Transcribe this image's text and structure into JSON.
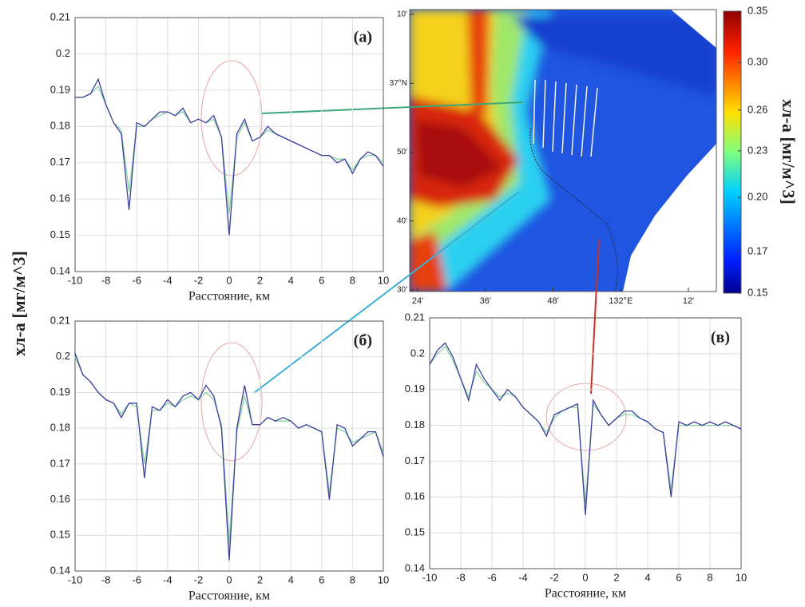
{
  "y_label": "хл-а [мг/м^3]",
  "chart_data": [
    {
      "type": "line",
      "panel_label": "(а)",
      "x_label": "Расстояние, км",
      "x": [
        -10,
        -9.5,
        -9,
        -8.5,
        -8,
        -7.5,
        -7,
        -6.5,
        -6,
        -5.5,
        -5,
        -4.5,
        -4,
        -3.5,
        -3,
        -2.5,
        -2,
        -1.5,
        -1,
        -0.5,
        0,
        0.5,
        1,
        1.5,
        2,
        2.5,
        3,
        3.5,
        4,
        4.5,
        5,
        5.5,
        6,
        6.5,
        7,
        7.5,
        8,
        8.5,
        9,
        9.5,
        10
      ],
      "series": [
        {
          "color": "#3c3f9e",
          "values": [
            0.188,
            0.188,
            0.189,
            0.193,
            0.186,
            0.181,
            0.178,
            0.157,
            0.181,
            0.18,
            0.182,
            0.184,
            0.184,
            0.183,
            0.185,
            0.181,
            0.182,
            0.181,
            0.183,
            0.177,
            0.15,
            0.178,
            0.182,
            0.176,
            0.177,
            0.18,
            0.178,
            0.177,
            0.176,
            0.175,
            0.174,
            0.173,
            0.172,
            0.172,
            0.17,
            0.171,
            0.167,
            0.171,
            0.173,
            0.172,
            0.169
          ]
        },
        {
          "color": "#86d3a4",
          "values": [
            0.188,
            0.188,
            0.189,
            0.191,
            0.186,
            0.181,
            0.179,
            0.162,
            0.18,
            0.18,
            0.182,
            0.183,
            0.184,
            0.183,
            0.184,
            0.181,
            0.182,
            0.181,
            0.182,
            0.177,
            0.156,
            0.177,
            0.181,
            0.176,
            0.177,
            0.179,
            0.178,
            0.177,
            0.176,
            0.175,
            0.174,
            0.173,
            0.172,
            0.172,
            0.171,
            0.171,
            0.168,
            0.171,
            0.172,
            0.172,
            0.17
          ]
        }
      ],
      "xlim": [
        -10,
        10
      ],
      "ylim": [
        0.14,
        0.21
      ],
      "xticks": [
        -10,
        -8,
        -6,
        -4,
        -2,
        0,
        2,
        4,
        6,
        8,
        10
      ],
      "yticks": [
        0.14,
        0.15,
        0.16,
        0.17,
        0.18,
        0.19,
        0.2,
        0.21
      ],
      "grid": true
    },
    {
      "type": "line",
      "panel_label": "(б)",
      "x_label": "Расстояние, км",
      "x": [
        -10,
        -9.5,
        -9,
        -8.5,
        -8,
        -7.5,
        -7,
        -6.5,
        -6,
        -5.5,
        -5,
        -4.5,
        -4,
        -3.5,
        -3,
        -2.5,
        -2,
        -1.5,
        -1,
        -0.5,
        0,
        0.5,
        1,
        1.5,
        2,
        2.5,
        3,
        3.5,
        4,
        4.5,
        5,
        5.5,
        6,
        6.5,
        7,
        7.5,
        8,
        8.5,
        9,
        9.5,
        10
      ],
      "series": [
        {
          "color": "#3c3f9e",
          "values": [
            0.201,
            0.195,
            0.193,
            0.19,
            0.188,
            0.187,
            0.183,
            0.187,
            0.187,
            0.166,
            0.186,
            0.185,
            0.188,
            0.186,
            0.189,
            0.19,
            0.188,
            0.192,
            0.189,
            0.18,
            0.143,
            0.18,
            0.192,
            0.181,
            0.181,
            0.183,
            0.182,
            0.183,
            0.182,
            0.18,
            0.181,
            0.18,
            0.179,
            0.16,
            0.181,
            0.18,
            0.175,
            0.177,
            0.179,
            0.179,
            0.172
          ]
        },
        {
          "color": "#86d3a4",
          "values": [
            0.2,
            0.195,
            0.193,
            0.19,
            0.188,
            0.187,
            0.184,
            0.187,
            0.186,
            0.17,
            0.185,
            0.185,
            0.187,
            0.186,
            0.188,
            0.189,
            0.188,
            0.19,
            0.188,
            0.181,
            0.148,
            0.179,
            0.189,
            0.181,
            0.181,
            0.183,
            0.182,
            0.182,
            0.182,
            0.18,
            0.181,
            0.18,
            0.179,
            0.162,
            0.18,
            0.179,
            0.176,
            0.177,
            0.178,
            0.179,
            0.173
          ]
        }
      ],
      "xlim": [
        -10,
        10
      ],
      "ylim": [
        0.14,
        0.21
      ],
      "xticks": [
        -10,
        -8,
        -6,
        -4,
        -2,
        0,
        2,
        4,
        6,
        8,
        10
      ],
      "yticks": [
        0.14,
        0.15,
        0.16,
        0.17,
        0.18,
        0.19,
        0.2,
        0.21
      ],
      "grid": true
    },
    {
      "type": "line",
      "panel_label": "(в)",
      "x_label": "Расстояние, км",
      "x": [
        -10,
        -9.5,
        -9,
        -8.5,
        -8,
        -7.5,
        -7,
        -6.5,
        -6,
        -5.5,
        -5,
        -4.5,
        -4,
        -3.5,
        -3,
        -2.5,
        -2,
        -1.5,
        -1,
        -0.5,
        0,
        0.5,
        1,
        1.5,
        2,
        2.5,
        3,
        3.5,
        4,
        4.5,
        5,
        5.5,
        6,
        6.5,
        7,
        7.5,
        8,
        8.5,
        9,
        9.5,
        10
      ],
      "series": [
        {
          "color": "#3c3f9e",
          "values": [
            0.197,
            0.201,
            0.203,
            0.199,
            0.193,
            0.187,
            0.197,
            0.193,
            0.19,
            0.187,
            0.19,
            0.188,
            0.185,
            0.183,
            0.181,
            0.177,
            0.183,
            0.184,
            0.185,
            0.186,
            0.155,
            0.187,
            0.183,
            0.18,
            0.182,
            0.184,
            0.184,
            0.182,
            0.181,
            0.179,
            0.178,
            0.16,
            0.181,
            0.18,
            0.181,
            0.18,
            0.181,
            0.18,
            0.181,
            0.18,
            0.179
          ]
        },
        {
          "color": "#86d3a4",
          "values": [
            0.197,
            0.2,
            0.202,
            0.198,
            0.193,
            0.188,
            0.195,
            0.192,
            0.19,
            0.188,
            0.189,
            0.188,
            0.185,
            0.183,
            0.181,
            0.178,
            0.182,
            0.184,
            0.185,
            0.185,
            0.158,
            0.186,
            0.183,
            0.18,
            0.182,
            0.183,
            0.183,
            0.182,
            0.181,
            0.179,
            0.178,
            0.162,
            0.18,
            0.18,
            0.18,
            0.18,
            0.18,
            0.18,
            0.18,
            0.18,
            0.179
          ]
        }
      ],
      "xlim": [
        -10,
        10
      ],
      "ylim": [
        0.14,
        0.21
      ],
      "xticks": [
        -10,
        -8,
        -6,
        -4,
        -2,
        0,
        2,
        4,
        6,
        8,
        10
      ],
      "yticks": [
        0.14,
        0.15,
        0.16,
        0.17,
        0.18,
        0.19,
        0.2,
        0.21
      ],
      "grid": true
    },
    {
      "type": "map",
      "lat_labels": [
        "10'",
        "37°N",
        "50'",
        "40'",
        "30'"
      ],
      "lon_labels": [
        "24'",
        "36'",
        "48'",
        "132°E",
        "12'"
      ],
      "colorbar_label": "хл-а [мг/м^3]",
      "clim": [
        0.15,
        0.35
      ],
      "log_scale": true,
      "cticks": [
        0.35,
        {
          "value": 0.3,
          "label": "0.30"
        },
        0.26,
        0.23,
        {
          "value": 0.2,
          "label": "0.20"
        },
        0.17,
        0.15
      ]
    }
  ]
}
